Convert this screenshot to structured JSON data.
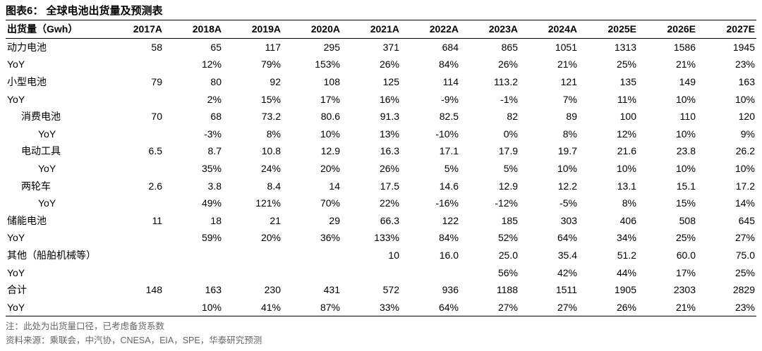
{
  "title": "图表6： 全球电池出货量及预测表",
  "columns": [
    "出货量（Gwh）",
    "2017A",
    "2018A",
    "2019A",
    "2020A",
    "2021A",
    "2022A",
    "2023A",
    "2024A",
    "2025E",
    "2026E",
    "2027E"
  ],
  "rows": [
    {
      "indent": 0,
      "cells": [
        "动力电池",
        "58",
        "65",
        "117",
        "295",
        "371",
        "684",
        "865",
        "1051",
        "1313",
        "1586",
        "1945"
      ]
    },
    {
      "indent": 0,
      "cells": [
        "YoY",
        "",
        "12%",
        "79%",
        "153%",
        "26%",
        "84%",
        "26%",
        "21%",
        "25%",
        "21%",
        "23%"
      ]
    },
    {
      "indent": 0,
      "cells": [
        "小型电池",
        "79",
        "80",
        "92",
        "108",
        "125",
        "114",
        "113.2",
        "121",
        "135",
        "149",
        "163"
      ]
    },
    {
      "indent": 0,
      "cells": [
        "YoY",
        "",
        "2%",
        "15%",
        "17%",
        "16%",
        "-9%",
        "-1%",
        "7%",
        "11%",
        "10%",
        "10%"
      ]
    },
    {
      "indent": 1,
      "cells": [
        "消费电池",
        "70",
        "68",
        "73.2",
        "80.6",
        "91.3",
        "82.5",
        "82",
        "89",
        "100",
        "110",
        "120"
      ]
    },
    {
      "indent": 2,
      "cells": [
        "YoY",
        "",
        "-3%",
        "8%",
        "10%",
        "13%",
        "-10%",
        "0%",
        "8%",
        "12%",
        "10%",
        "9%"
      ]
    },
    {
      "indent": 1,
      "cells": [
        "电动工具",
        "6.5",
        "8.7",
        "10.8",
        "12.9",
        "16.3",
        "17.1",
        "17.9",
        "19.7",
        "21.6",
        "23.8",
        "26.2"
      ]
    },
    {
      "indent": 2,
      "cells": [
        "YoY",
        "",
        "35%",
        "24%",
        "20%",
        "26%",
        "5%",
        "5%",
        "10%",
        "10%",
        "10%",
        "10%"
      ]
    },
    {
      "indent": 1,
      "cells": [
        "两轮车",
        "2.6",
        "3.8",
        "8.4",
        "14",
        "17.5",
        "14.6",
        "12.9",
        "12.2",
        "13.1",
        "15.1",
        "17.2"
      ]
    },
    {
      "indent": 2,
      "cells": [
        "YoY",
        "",
        "49%",
        "121%",
        "70%",
        "22%",
        "-16%",
        "-12%",
        "-5%",
        "8%",
        "15%",
        "14%"
      ]
    },
    {
      "indent": 0,
      "cells": [
        "储能电池",
        "11",
        "18",
        "21",
        "29",
        "66.3",
        "122",
        "185",
        "303",
        "406",
        "508",
        "645"
      ]
    },
    {
      "indent": 0,
      "cells": [
        "YoY",
        "",
        "59%",
        "20%",
        "36%",
        "133%",
        "84%",
        "52%",
        "64%",
        "34%",
        "25%",
        "27%"
      ]
    },
    {
      "indent": 0,
      "cells": [
        "其他（船舶机械等）",
        "",
        "",
        "",
        "",
        "10",
        "16.0",
        "25.0",
        "35.4",
        "51.2",
        "60.0",
        "75.0"
      ]
    },
    {
      "indent": 0,
      "cells": [
        "YoY",
        "",
        "",
        "",
        "",
        "",
        "",
        "56%",
        "42%",
        "44%",
        "17%",
        "25%"
      ]
    },
    {
      "indent": 0,
      "cells": [
        "合计",
        "148",
        "163",
        "230",
        "431",
        "572",
        "936",
        "1188",
        "1511",
        "1905",
        "2303",
        "2829"
      ]
    },
    {
      "indent": 0,
      "cells": [
        "YoY",
        "",
        "10%",
        "41%",
        "87%",
        "33%",
        "64%",
        "27%",
        "27%",
        "26%",
        "21%",
        "23%"
      ]
    }
  ],
  "notes": [
    "注：此处为出货量口径，已考虑备货系数",
    "资料来源：乘联会，中汽协，CNESA，EIA，SPE，华泰研究预测"
  ]
}
